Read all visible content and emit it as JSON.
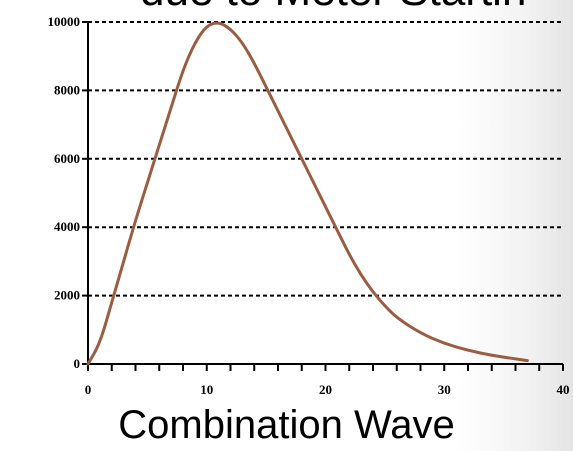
{
  "header": {
    "partial_title": "due to Meter Startin"
  },
  "footer": {
    "title": "Combination Wave"
  },
  "chart_data": {
    "type": "line",
    "xlim": [
      0,
      40
    ],
    "ylim": [
      0,
      10000
    ],
    "x_ticks": [
      "0",
      "10",
      "20",
      "30",
      "40"
    ],
    "y_ticks": [
      "0",
      "2000",
      "4000",
      "6000",
      "8000",
      "10000"
    ],
    "grid": "horizontal dashed",
    "line_color": "#9b5d42",
    "series": [
      {
        "x": [
          0,
          1,
          2,
          3,
          4,
          5,
          6,
          7,
          8,
          9,
          10,
          11,
          12,
          13,
          14,
          15,
          16,
          17,
          18,
          19,
          20,
          21,
          22,
          23,
          24,
          25,
          26,
          28,
          30,
          32,
          34,
          36,
          37
        ],
        "y": [
          0,
          600,
          1800,
          3000,
          4200,
          5300,
          6400,
          7500,
          8600,
          9400,
          9900,
          10000,
          9800,
          9400,
          8800,
          8100,
          7400,
          6700,
          6000,
          5300,
          4600,
          3900,
          3200,
          2600,
          2100,
          1700,
          1350,
          900,
          600,
          400,
          250,
          150,
          100
        ]
      }
    ]
  }
}
